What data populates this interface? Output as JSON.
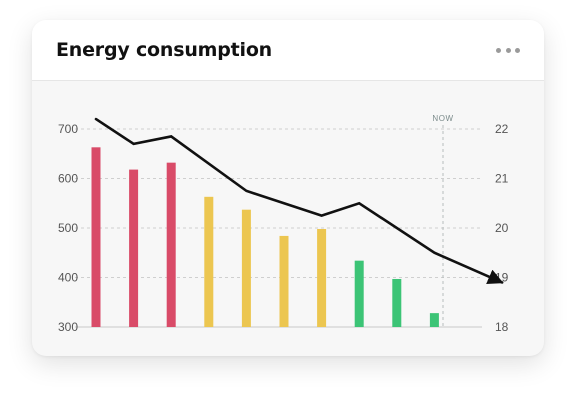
{
  "card": {
    "title": "Energy consumption",
    "menu_icon": "more-horizontal-icon"
  },
  "chart_data": {
    "type": "bar",
    "title": "",
    "xlabel": "",
    "ylabel": "",
    "ylim": [
      300,
      700
    ],
    "y_ticks": [
      "700",
      "600",
      "500",
      "400",
      "300"
    ],
    "y2lim": [
      18,
      22
    ],
    "y2_ticks": [
      "22",
      "21",
      "20",
      "19",
      "18"
    ],
    "grid": true,
    "marker_label": "NOW",
    "series": [
      {
        "kind": "bar",
        "axis": "left",
        "values": [
          663,
          618,
          632,
          563,
          537,
          484,
          498,
          434,
          397,
          328
        ],
        "colors": [
          "#d94b68",
          "#d94b68",
          "#d94b68",
          "#ecc650",
          "#ecc650",
          "#ecc650",
          "#ecc650",
          "#3cc476",
          "#3cc476",
          "#3cc476"
        ]
      },
      {
        "kind": "line",
        "axis": "right",
        "values": [
          22.2,
          21.7,
          21.85,
          20.75,
          20.25,
          20.5,
          19.5,
          18.9
        ],
        "x_index": [
          0,
          1,
          2,
          4,
          6,
          7,
          9,
          10.8
        ],
        "color": "#111111",
        "arrow_end": true
      }
    ]
  }
}
